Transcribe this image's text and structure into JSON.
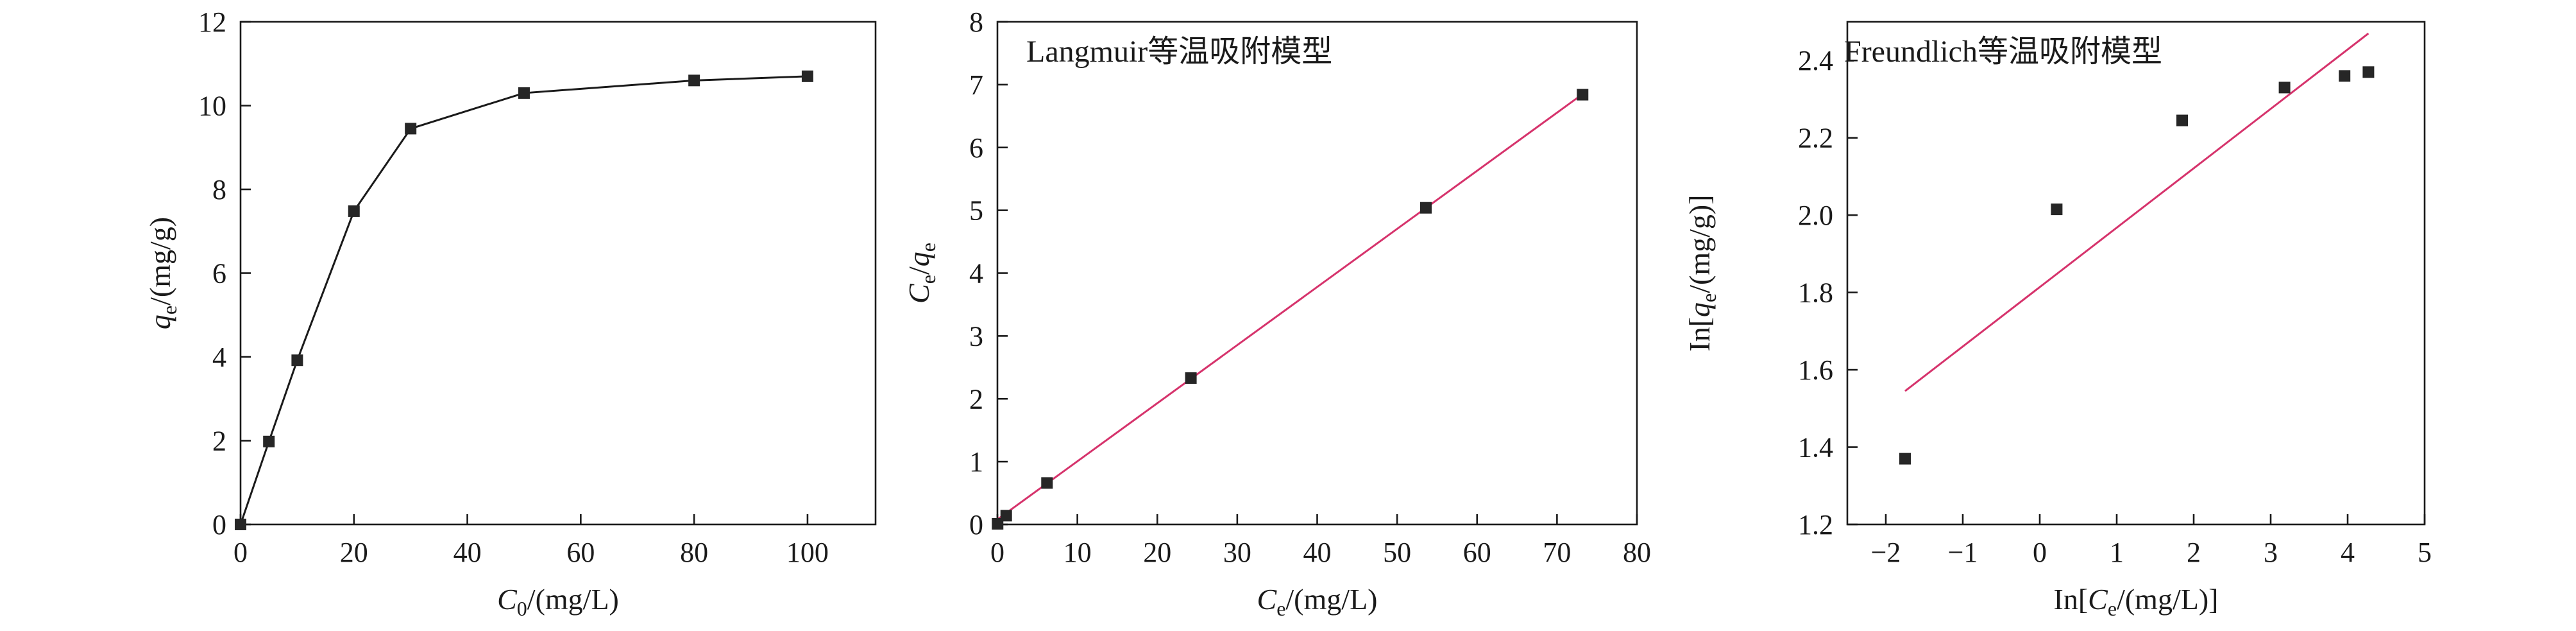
{
  "colors": {
    "axis": "#1a1a1a",
    "marker": "#262626",
    "fit": "#d6336c"
  },
  "chart_data": [
    {
      "type": "line",
      "title": "",
      "xlabel_main": "C",
      "xlabel_sub": "0",
      "xlabel_rest": "/(mg/L)",
      "ylabel_main": "q",
      "ylabel_sub": "e",
      "ylabel_rest": "/(mg/g)",
      "xlim": [
        0,
        112
      ],
      "ylim": [
        0,
        12
      ],
      "xticks": [
        0,
        20,
        40,
        60,
        80,
        100
      ],
      "yticks": [
        0,
        2,
        4,
        6,
        8,
        10,
        12
      ],
      "grid": false,
      "series": [
        {
          "x": [
            0,
            5,
            10,
            20,
            30,
            50,
            80,
            100
          ],
          "y": [
            0,
            1.98,
            3.92,
            7.48,
            9.45,
            10.3,
            10.6,
            10.7
          ],
          "line": true
        }
      ]
    },
    {
      "type": "scatter",
      "title": "Langmuir等温吸附模型",
      "xlabel_main": "C",
      "xlabel_sub": "e",
      "xlabel_rest": "/(mg/L)",
      "ylabel_main": "C",
      "ylabel_sub": "e",
      "ylabel_rest": "/",
      "ylabel_main2": "q",
      "ylabel_sub2": "e",
      "xlim": [
        0,
        80
      ],
      "ylim": [
        0,
        8
      ],
      "xticks": [
        0,
        10,
        20,
        30,
        40,
        50,
        60,
        70,
        80
      ],
      "yticks": [
        0,
        1,
        2,
        3,
        4,
        5,
        6,
        7,
        8
      ],
      "grid": false,
      "series": [
        {
          "x": [
            0.02,
            1.1,
            6.2,
            24.2,
            53.6,
            73.2
          ],
          "y": [
            0.01,
            0.14,
            0.66,
            2.33,
            5.04,
            6.84
          ],
          "fit": {
            "x": [
              0,
              73.2
            ],
            "y": [
              0.08,
              6.85
            ]
          }
        }
      ]
    },
    {
      "type": "scatter",
      "title": "Freundlich等温吸附模型",
      "xlabel_main": "In[C",
      "xlabel_sub": "e",
      "xlabel_rest": "/(mg/L)]",
      "ylabel_main": "In[q",
      "ylabel_sub": "e",
      "ylabel_rest": "/(mg/g)]",
      "xlim": [
        -2.5,
        5
      ],
      "ylim": [
        1.2,
        2.5
      ],
      "xticks": [
        -2,
        -1,
        0,
        1,
        2,
        3,
        4,
        5
      ],
      "xticklabels": [
        "−2",
        "−1",
        "0",
        "1",
        "2",
        "3",
        "4",
        "5"
      ],
      "yticks": [
        1.2,
        1.4,
        1.6,
        1.8,
        2.0,
        2.2,
        2.4
      ],
      "yticklabels": [
        "1.2",
        "1.4",
        "1.6",
        "1.8",
        "2.0",
        "2.2",
        "2.4"
      ],
      "grid": false,
      "series": [
        {
          "x": [
            -1.75,
            0.22,
            1.85,
            3.18,
            3.96,
            4.27
          ],
          "y": [
            1.37,
            2.015,
            2.245,
            2.33,
            2.36,
            2.37
          ],
          "fit": {
            "x": [
              -1.75,
              4.27
            ],
            "y": [
              1.545,
              2.47
            ]
          }
        }
      ]
    }
  ]
}
